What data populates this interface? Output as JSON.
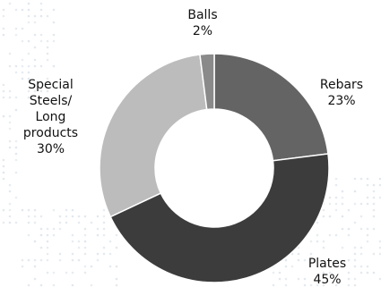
{
  "chart_data": {
    "type": "pie",
    "variant": "donut",
    "categories": [
      "Rebars",
      "Plates",
      "Special Steels/ Long products",
      "Balls"
    ],
    "values": [
      23,
      45,
      30,
      2
    ],
    "unit": "%",
    "colors": [
      "#646464",
      "#3c3c3c",
      "#bcbcbc",
      "#8a8a8a"
    ],
    "labels": [
      {
        "name": "Rebars",
        "value": "23%",
        "lines": [
          "Rebars"
        ]
      },
      {
        "name": "Plates",
        "value": "45%",
        "lines": [
          "Plates"
        ]
      },
      {
        "name": "Special Steels/ Long products",
        "value": "30%",
        "lines": [
          "Special",
          "Steels/",
          "Long",
          "products"
        ]
      },
      {
        "name": "Balls",
        "value": "2%",
        "lines": [
          "Balls"
        ]
      }
    ],
    "slice_border_color": "#ffffff",
    "background_dots_color": "#d3dde6",
    "legend": "none"
  }
}
